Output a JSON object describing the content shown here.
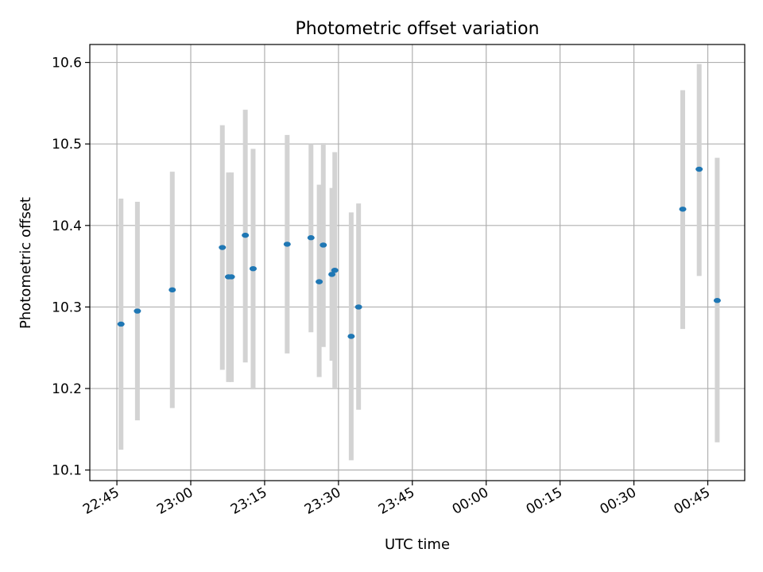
{
  "chart_data": {
    "type": "scatter",
    "title": "Photometric offset variation",
    "xlabel": "UTC time",
    "ylabel": "Photometric offset",
    "x_unit": "minutes after 22:00 UTC",
    "xlim": [
      "22:39:30",
      "00:52:30"
    ],
    "ylim": [
      10.087,
      10.622
    ],
    "x_ticks": [
      "22:45",
      "23:00",
      "23:15",
      "23:30",
      "23:45",
      "00:00",
      "00:15",
      "00:30",
      "00:45"
    ],
    "y_ticks": [
      "10.1",
      "10.2",
      "10.3",
      "10.4",
      "10.5",
      "10.6"
    ],
    "grid": true,
    "points": [
      {
        "time": "22:45:50",
        "value": 10.279,
        "low": 10.125,
        "high": 10.433
      },
      {
        "time": "22:49:10",
        "value": 10.295,
        "low": 10.161,
        "high": 10.429
      },
      {
        "time": "22:56:15",
        "value": 10.321,
        "low": 10.176,
        "high": 10.466
      },
      {
        "time": "23:06:25",
        "value": 10.373,
        "low": 10.223,
        "high": 10.523
      },
      {
        "time": "23:07:40",
        "value": 10.337,
        "low": 10.208,
        "high": 10.465
      },
      {
        "time": "23:08:15",
        "value": 10.337,
        "low": 10.208,
        "high": 10.465
      },
      {
        "time": "23:11:05",
        "value": 10.388,
        "low": 10.232,
        "high": 10.542
      },
      {
        "time": "23:12:40",
        "value": 10.347,
        "low": 10.199,
        "high": 10.494
      },
      {
        "time": "23:19:35",
        "value": 10.377,
        "low": 10.243,
        "high": 10.511
      },
      {
        "time": "23:24:25",
        "value": 10.385,
        "low": 10.269,
        "high": 10.5
      },
      {
        "time": "23:26:05",
        "value": 10.331,
        "low": 10.214,
        "high": 10.45
      },
      {
        "time": "23:26:55",
        "value": 10.376,
        "low": 10.251,
        "high": 10.501
      },
      {
        "time": "23:28:40",
        "value": 10.34,
        "low": 10.234,
        "high": 10.446
      },
      {
        "time": "23:29:15",
        "value": 10.345,
        "low": 10.2,
        "high": 10.49
      },
      {
        "time": "23:32:35",
        "value": 10.264,
        "low": 10.112,
        "high": 10.416
      },
      {
        "time": "23:34:05",
        "value": 10.3,
        "low": 10.174,
        "high": 10.427
      },
      {
        "time": "00:39:55",
        "value": 10.42,
        "low": 10.273,
        "high": 10.566
      },
      {
        "time": "00:43:15",
        "value": 10.469,
        "low": 10.338,
        "high": 10.598
      },
      {
        "time": "00:46:55",
        "value": 10.308,
        "low": 10.134,
        "high": 10.483
      }
    ],
    "point_color": "#1f77b4",
    "errorbar_color": "#d3d3d3"
  }
}
